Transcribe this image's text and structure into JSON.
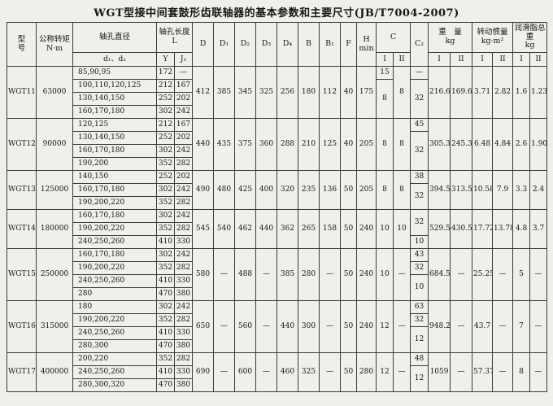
{
  "title": "WGT型接中间套鼓形齿联轴器的基本参数和主要尺寸(JB/T7004-2007)",
  "colors": {
    "page_background": "#f0efec",
    "table_border": "#3b3b3b",
    "text": "#161616"
  },
  "header": {
    "model_label": "型\n号",
    "torque_label": "公称转矩\nN·m",
    "bore_dia": "轴孔直径",
    "bore_dia_sub": "d₁、d₂",
    "bore_len_label": "轴孔长度\nL",
    "col_Y": "Y",
    "col_J1": "J₁",
    "col_D": "D",
    "col_D1": "D₁",
    "col_D2": "D₂",
    "col_D3": "D₃",
    "col_D4": "D₄",
    "col_B": "B",
    "col_B1": "B₁",
    "col_F": "F",
    "col_H": "H\nmin",
    "col_C": "C",
    "col_C2": "C₂",
    "weight_label": "重　量\nkg",
    "inertia_label": "转动惯量\nkg·m²",
    "grease_label": "润滑脂总重\nkg",
    "roman_I": "I",
    "roman_II": "II"
  },
  "groups": [
    {
      "model": "WGT11",
      "torque": "63000",
      "rows": [
        {
          "d": "85,90,95",
          "Y": "172",
          "J1": "—"
        },
        {
          "d": "100,110,120,125",
          "Y": "212",
          "J1": "167"
        },
        {
          "d": "130,140,150",
          "Y": "252",
          "J1": "202"
        },
        {
          "d": "160,170,180",
          "Y": "302",
          "J1": "242"
        }
      ],
      "dims": {
        "D": "412",
        "D1": "385",
        "D2": "345",
        "D3": "325",
        "D4": "256",
        "B": "180",
        "B1": "112",
        "F": "40",
        "H": "175"
      },
      "c_I": [
        {
          "v": "15",
          "span": 1
        },
        {
          "v": "8",
          "span": 3
        }
      ],
      "c_II": [
        {
          "v": "8",
          "span": 4
        }
      ],
      "c_2": [
        {
          "v": "—",
          "span": 1
        },
        {
          "v": "32",
          "span": 3
        }
      ],
      "wI": "216.6",
      "wII": "169.6",
      "iI": "3.71",
      "iII": "2.82",
      "gI": "1.6",
      "gII": "1.23"
    },
    {
      "model": "WGT12",
      "torque": "90000",
      "rows": [
        {
          "d": "120,125",
          "Y": "212",
          "J1": "167"
        },
        {
          "d": "130,140,150",
          "Y": "252",
          "J1": "202"
        },
        {
          "d": "160,170,180",
          "Y": "302",
          "J1": "242"
        },
        {
          "d": "190,200",
          "Y": "352",
          "J1": "282"
        }
      ],
      "dims": {
        "D": "440",
        "D1": "435",
        "D2": "375",
        "D3": "360",
        "D4": "288",
        "B": "210",
        "B1": "125",
        "F": "40",
        "H": "205"
      },
      "c_I": [
        {
          "v": "8",
          "span": 4
        }
      ],
      "c_II": [
        {
          "v": "8",
          "span": 4
        }
      ],
      "c_2": [
        {
          "v": "45",
          "span": 1
        },
        {
          "v": "32",
          "span": 3
        }
      ],
      "wI": "305.3",
      "wII": "245.3",
      "iI": "6.48",
      "iII": "4.84",
      "gI": "2.6",
      "gII": "1.90"
    },
    {
      "model": "WGT13",
      "torque": "125000",
      "rows": [
        {
          "d": "140,150",
          "Y": "252",
          "J1": "202"
        },
        {
          "d": "160,170,180",
          "Y": "302",
          "J1": "242"
        },
        {
          "d": "190,200,220",
          "Y": "352",
          "J1": "282"
        }
      ],
      "dims": {
        "D": "490",
        "D1": "480",
        "D2": "425",
        "D3": "400",
        "D4": "320",
        "B": "235",
        "B1": "136",
        "F": "50",
        "H": "205"
      },
      "c_I": [
        {
          "v": "8",
          "span": 3
        }
      ],
      "c_II": [
        {
          "v": "8",
          "span": 3
        }
      ],
      "c_2": [
        {
          "v": "38",
          "span": 1
        },
        {
          "v": "32",
          "span": 2
        }
      ],
      "wI": "394.5",
      "wII": "313.5",
      "iI": "10.58",
      "iII": "7.9",
      "gI": "3.3",
      "gII": "2.4"
    },
    {
      "model": "WGT14",
      "torque": "180000",
      "rows": [
        {
          "d": "160,170,180",
          "Y": "302",
          "J1": "242"
        },
        {
          "d": "190,200,220",
          "Y": "352",
          "J1": "282"
        },
        {
          "d": "240,250,260",
          "Y": "410",
          "J1": "330"
        }
      ],
      "dims": {
        "D": "545",
        "D1": "540",
        "D2": "462",
        "D3": "440",
        "D4": "362",
        "B": "265",
        "B1": "158",
        "F": "50",
        "H": "240"
      },
      "c_I": [
        {
          "v": "10",
          "span": 3
        }
      ],
      "c_II": [
        {
          "v": "10",
          "span": 3
        }
      ],
      "c_2": [
        {
          "v": "32",
          "span": 2
        },
        {
          "v": "10",
          "span": 1
        }
      ],
      "wI": "529.5",
      "wII": "430.5",
      "iI": "17.72",
      "iII": "13.78",
      "gI": "4.8",
      "gII": "3.7"
    },
    {
      "model": "WGT15",
      "torque": "250000",
      "rows": [
        {
          "d": "160,170,180",
          "Y": "302",
          "J1": "242"
        },
        {
          "d": "190,200,220",
          "Y": "352",
          "J1": "282"
        },
        {
          "d": "240,250,260",
          "Y": "410",
          "J1": "330"
        },
        {
          "d": "280",
          "Y": "470",
          "J1": "380"
        }
      ],
      "dims": {
        "D": "580",
        "D1": "—",
        "D2": "488",
        "D3": "—",
        "D4": "385",
        "B": "280",
        "B1": "—",
        "F": "50",
        "H": "240"
      },
      "c_I": [
        {
          "v": "10",
          "span": 4
        }
      ],
      "c_II": [
        {
          "v": "—",
          "span": 4
        }
      ],
      "c_2": [
        {
          "v": "43",
          "span": 1
        },
        {
          "v": "32",
          "span": 1
        },
        {
          "v": "10",
          "span": 2
        }
      ],
      "wI": "684.5",
      "wII": "—",
      "iI": "25.25",
      "iII": "—",
      "gI": "5",
      "gII": "—"
    },
    {
      "model": "WGT16",
      "torque": "315000",
      "rows": [
        {
          "d": "180",
          "Y": "302",
          "J1": "242"
        },
        {
          "d": "190,200,220",
          "Y": "352",
          "J1": "282"
        },
        {
          "d": "240,250,260",
          "Y": "410",
          "J1": "330"
        },
        {
          "d": "280,300",
          "Y": "470",
          "J1": "380"
        }
      ],
      "dims": {
        "D": "650",
        "D1": "—",
        "D2": "560",
        "D3": "—",
        "D4": "440",
        "B": "300",
        "B1": "—",
        "F": "50",
        "H": "240"
      },
      "c_I": [
        {
          "v": "12",
          "span": 4
        }
      ],
      "c_II": [
        {
          "v": "—",
          "span": 4
        }
      ],
      "c_2": [
        {
          "v": "63",
          "span": 1
        },
        {
          "v": "32",
          "span": 1
        },
        {
          "v": "12",
          "span": 2
        }
      ],
      "wI": "948.2",
      "wII": "—",
      "iI": "43.7",
      "iII": "—",
      "gI": "7",
      "gII": "—"
    },
    {
      "model": "WGT17",
      "torque": "400000",
      "rows": [
        {
          "d": "200,220",
          "Y": "352",
          "J1": "282"
        },
        {
          "d": "240,250,260",
          "Y": "410",
          "J1": "330"
        },
        {
          "d": "280,300,320",
          "Y": "470",
          "J1": "380"
        }
      ],
      "dims": {
        "D": "690",
        "D1": "—",
        "D2": "600",
        "D3": "—",
        "D4": "460",
        "B": "325",
        "B1": "—",
        "F": "50",
        "H": "280"
      },
      "c_I": [
        {
          "v": "12",
          "span": 3
        }
      ],
      "c_II": [
        {
          "v": "—",
          "span": 3
        }
      ],
      "c_2": [
        {
          "v": "48",
          "span": 1
        },
        {
          "v": "12",
          "span": 2
        }
      ],
      "wI": "1059",
      "wII": "—",
      "iI": "57.37",
      "iII": "—",
      "gI": "8",
      "gII": "—"
    }
  ]
}
